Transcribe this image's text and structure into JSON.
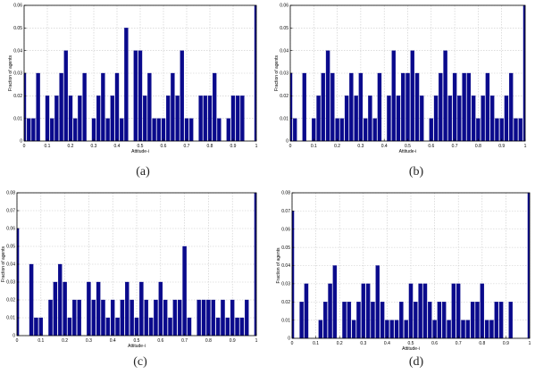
{
  "chart_data": [
    {
      "type": "bar",
      "caption": "(a)",
      "xlabel": "Attitude-i",
      "ylabel": "Fraction of agents",
      "xlim": [
        0,
        1
      ],
      "ylim": [
        0,
        0.06
      ],
      "xticks": [
        "0",
        "0.1",
        "0.2",
        "0.3",
        "0.4",
        "0.5",
        "0.6",
        "0.7",
        "0.8",
        "0.9",
        "1"
      ],
      "yticks": [
        "0",
        "0.01",
        "0.02",
        "0.03",
        "0.04",
        "0.05",
        "0.06"
      ],
      "grid": true,
      "bar_color": "#0a0a8c",
      "x": [
        0,
        0.02,
        0.04,
        0.06,
        0.08,
        0.1,
        0.12,
        0.14,
        0.16,
        0.18,
        0.2,
        0.22,
        0.24,
        0.26,
        0.28,
        0.3,
        0.32,
        0.34,
        0.36,
        0.38,
        0.4,
        0.42,
        0.44,
        0.46,
        0.48,
        0.5,
        0.52,
        0.54,
        0.56,
        0.58,
        0.6,
        0.62,
        0.64,
        0.66,
        0.68,
        0.7,
        0.72,
        0.74,
        0.76,
        0.78,
        0.8,
        0.82,
        0.84,
        0.86,
        0.88,
        0.9,
        0.92,
        0.94,
        0.96,
        0.98,
        1.0
      ],
      "values": [
        0.03,
        0.01,
        0.01,
        0.03,
        0,
        0.02,
        0.01,
        0.02,
        0.03,
        0.04,
        0.02,
        0.01,
        0.02,
        0.03,
        0,
        0.01,
        0.02,
        0.03,
        0.01,
        0.02,
        0.03,
        0.01,
        0.05,
        0,
        0.04,
        0.04,
        0.02,
        0.03,
        0.01,
        0.01,
        0.01,
        0.02,
        0.03,
        0.02,
        0.04,
        0.01,
        0.01,
        0,
        0.02,
        0.02,
        0.02,
        0.03,
        0.01,
        0,
        0.01,
        0.02,
        0.02,
        0.02,
        0,
        0,
        0.06
      ]
    },
    {
      "type": "bar",
      "caption": "(b)",
      "xlabel": "Attitude-i",
      "ylabel": "Fraction of agents",
      "xlim": [
        0,
        1
      ],
      "ylim": [
        0,
        0.06
      ],
      "xticks": [
        "0",
        "0.1",
        "0.2",
        "0.3",
        "0.4",
        "0.5",
        "0.6",
        "0.7",
        "0.8",
        "0.9",
        "1"
      ],
      "yticks": [
        "0",
        "0.01",
        "0.02",
        "0.03",
        "0.04",
        "0.05",
        "0.06"
      ],
      "grid": true,
      "bar_color": "#0a0a8c",
      "x": [
        0,
        0.02,
        0.04,
        0.06,
        0.08,
        0.1,
        0.12,
        0.14,
        0.16,
        0.18,
        0.2,
        0.22,
        0.24,
        0.26,
        0.28,
        0.3,
        0.32,
        0.34,
        0.36,
        0.38,
        0.4,
        0.42,
        0.44,
        0.46,
        0.48,
        0.5,
        0.52,
        0.54,
        0.56,
        0.58,
        0.6,
        0.62,
        0.64,
        0.66,
        0.68,
        0.7,
        0.72,
        0.74,
        0.76,
        0.78,
        0.8,
        0.82,
        0.84,
        0.86,
        0.88,
        0.9,
        0.92,
        0.94,
        0.96,
        0.98,
        1.0
      ],
      "values": [
        0.03,
        0.01,
        0,
        0.03,
        0,
        0.01,
        0.02,
        0.03,
        0.04,
        0.03,
        0.01,
        0.01,
        0.02,
        0.03,
        0.02,
        0.03,
        0.01,
        0.02,
        0.01,
        0.03,
        0,
        0.02,
        0.04,
        0.02,
        0.03,
        0.03,
        0.04,
        0.03,
        0.02,
        0,
        0.01,
        0.02,
        0.03,
        0.04,
        0.02,
        0.03,
        0.02,
        0.03,
        0.03,
        0.02,
        0.01,
        0.02,
        0.03,
        0.02,
        0.01,
        0.01,
        0.02,
        0.03,
        0.01,
        0.01,
        0.06
      ]
    },
    {
      "type": "bar",
      "caption": "(c)",
      "xlabel": "Attitude-i",
      "ylabel": "Fraction of agents",
      "xlim": [
        0,
        1
      ],
      "ylim": [
        0,
        0.08
      ],
      "xticks": [
        "0",
        "0.1",
        "0.2",
        "0.3",
        "0.4",
        "0.5",
        "0.6",
        "0.7",
        "0.8",
        "0.9",
        "1"
      ],
      "yticks": [
        "0",
        "0.01",
        "0.02",
        "0.03",
        "0.04",
        "0.05",
        "0.06",
        "0.07",
        "0.08"
      ],
      "grid": true,
      "bar_color": "#0a0a8c",
      "x": [
        0,
        0.02,
        0.04,
        0.06,
        0.08,
        0.1,
        0.12,
        0.14,
        0.16,
        0.18,
        0.2,
        0.22,
        0.24,
        0.26,
        0.28,
        0.3,
        0.32,
        0.34,
        0.36,
        0.38,
        0.4,
        0.42,
        0.44,
        0.46,
        0.48,
        0.5,
        0.52,
        0.54,
        0.56,
        0.58,
        0.6,
        0.62,
        0.64,
        0.66,
        0.68,
        0.7,
        0.72,
        0.74,
        0.76,
        0.78,
        0.8,
        0.82,
        0.84,
        0.86,
        0.88,
        0.9,
        0.92,
        0.94,
        0.96,
        0.98,
        1.0
      ],
      "values": [
        0.06,
        0,
        0,
        0.04,
        0.01,
        0.01,
        0,
        0.02,
        0.03,
        0.04,
        0.03,
        0.01,
        0.02,
        0.02,
        0,
        0.03,
        0.02,
        0.03,
        0.02,
        0.01,
        0.02,
        0.01,
        0.02,
        0.03,
        0.02,
        0.01,
        0.03,
        0.02,
        0.01,
        0.02,
        0.03,
        0.02,
        0.01,
        0.02,
        0.02,
        0.05,
        0.01,
        0,
        0.02,
        0.02,
        0.02,
        0.02,
        0.01,
        0.02,
        0.01,
        0.02,
        0.01,
        0.01,
        0.02,
        0,
        0.08
      ]
    },
    {
      "type": "bar",
      "caption": "(d)",
      "xlabel": "Attitude-i",
      "ylabel": "Fraction of agents",
      "xlim": [
        0,
        1
      ],
      "ylim": [
        0,
        0.08
      ],
      "xticks": [
        "0",
        "0.1",
        "0.2",
        "0.3",
        "0.4",
        "0.5",
        "0.6",
        "0.7",
        "0.8",
        "0.9",
        "1"
      ],
      "yticks": [
        "0",
        "0.01",
        "0.02",
        "0.03",
        "0.04",
        "0.05",
        "0.06",
        "0.07",
        "0.08"
      ],
      "grid": true,
      "bar_color": "#0a0a8c",
      "x": [
        0,
        0.02,
        0.04,
        0.06,
        0.08,
        0.1,
        0.12,
        0.14,
        0.16,
        0.18,
        0.2,
        0.22,
        0.24,
        0.26,
        0.28,
        0.3,
        0.32,
        0.34,
        0.36,
        0.38,
        0.4,
        0.42,
        0.44,
        0.46,
        0.48,
        0.5,
        0.52,
        0.54,
        0.56,
        0.58,
        0.6,
        0.62,
        0.64,
        0.66,
        0.68,
        0.7,
        0.72,
        0.74,
        0.76,
        0.78,
        0.8,
        0.82,
        0.84,
        0.86,
        0.88,
        0.9,
        0.92,
        0.94,
        0.96,
        0.98,
        1.0
      ],
      "values": [
        0.07,
        0,
        0.02,
        0.03,
        0,
        0,
        0.01,
        0.02,
        0.03,
        0.04,
        0,
        0.02,
        0.02,
        0.01,
        0.02,
        0.03,
        0.03,
        0.02,
        0.04,
        0.02,
        0.01,
        0.01,
        0.01,
        0.02,
        0.01,
        0.03,
        0.02,
        0.03,
        0.03,
        0.02,
        0.01,
        0.02,
        0.02,
        0.01,
        0.03,
        0.03,
        0.01,
        0.01,
        0.02,
        0.02,
        0.03,
        0.01,
        0.01,
        0.02,
        0.02,
        0,
        0.02,
        0,
        0,
        0,
        0.08
      ]
    }
  ]
}
